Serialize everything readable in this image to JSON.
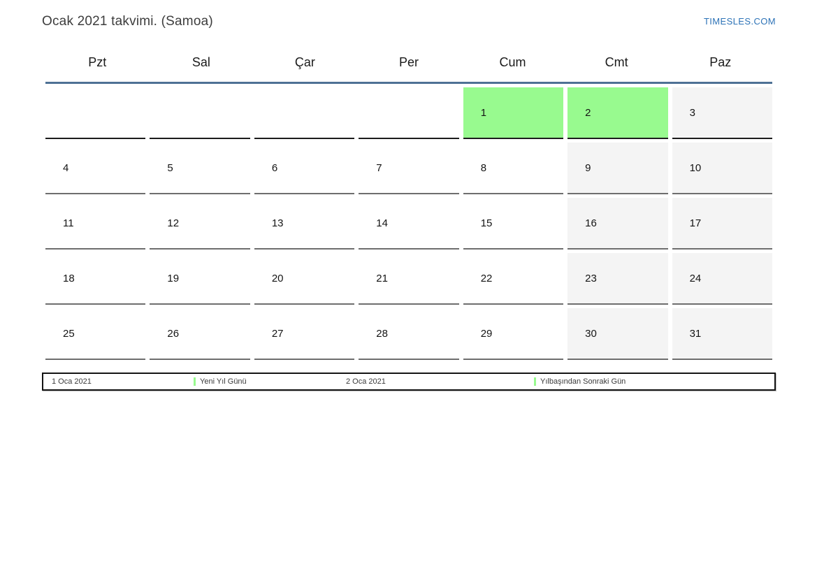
{
  "header": {
    "title": "Ocak 2021 takvimi. (Samoa)",
    "site_link": "TIMESLES.COM"
  },
  "calendar": {
    "day_headers": [
      "Pzt",
      "Sal",
      "Çar",
      "Per",
      "Cum",
      "Cmt",
      "Paz"
    ],
    "weeks": [
      [
        {
          "label": "",
          "type": "empty"
        },
        {
          "label": "",
          "type": "empty"
        },
        {
          "label": "",
          "type": "empty"
        },
        {
          "label": "",
          "type": "empty"
        },
        {
          "label": "1",
          "type": "holiday"
        },
        {
          "label": "2",
          "type": "holiday"
        },
        {
          "label": "3",
          "type": "weekend"
        }
      ],
      [
        {
          "label": "4",
          "type": "weekday"
        },
        {
          "label": "5",
          "type": "weekday"
        },
        {
          "label": "6",
          "type": "weekday"
        },
        {
          "label": "7",
          "type": "weekday"
        },
        {
          "label": "8",
          "type": "weekday"
        },
        {
          "label": "9",
          "type": "weekend"
        },
        {
          "label": "10",
          "type": "weekend"
        }
      ],
      [
        {
          "label": "11",
          "type": "weekday"
        },
        {
          "label": "12",
          "type": "weekday"
        },
        {
          "label": "13",
          "type": "weekday"
        },
        {
          "label": "14",
          "type": "weekday"
        },
        {
          "label": "15",
          "type": "weekday"
        },
        {
          "label": "16",
          "type": "weekend"
        },
        {
          "label": "17",
          "type": "weekend"
        }
      ],
      [
        {
          "label": "18",
          "type": "weekday"
        },
        {
          "label": "19",
          "type": "weekday"
        },
        {
          "label": "20",
          "type": "weekday"
        },
        {
          "label": "21",
          "type": "weekday"
        },
        {
          "label": "22",
          "type": "weekday"
        },
        {
          "label": "23",
          "type": "weekend"
        },
        {
          "label": "24",
          "type": "weekend"
        }
      ],
      [
        {
          "label": "25",
          "type": "weekday"
        },
        {
          "label": "26",
          "type": "weekday"
        },
        {
          "label": "27",
          "type": "weekday"
        },
        {
          "label": "28",
          "type": "weekday"
        },
        {
          "label": "29",
          "type": "weekday"
        },
        {
          "label": "30",
          "type": "weekend"
        },
        {
          "label": "31",
          "type": "weekend"
        }
      ]
    ]
  },
  "legend": {
    "entries": [
      {
        "date": "1 Oca 2021",
        "name": "Yeni Yıl Günü"
      },
      {
        "date": "2 Oca 2021",
        "name": "Yılbaşından Sonraki Gün"
      }
    ]
  },
  "colors": {
    "holiday_green": "#98fa8f",
    "weekend_gray": "#f4f4f4",
    "header_line_blue": "#4e7195",
    "link_blue": "#2d73b7"
  }
}
